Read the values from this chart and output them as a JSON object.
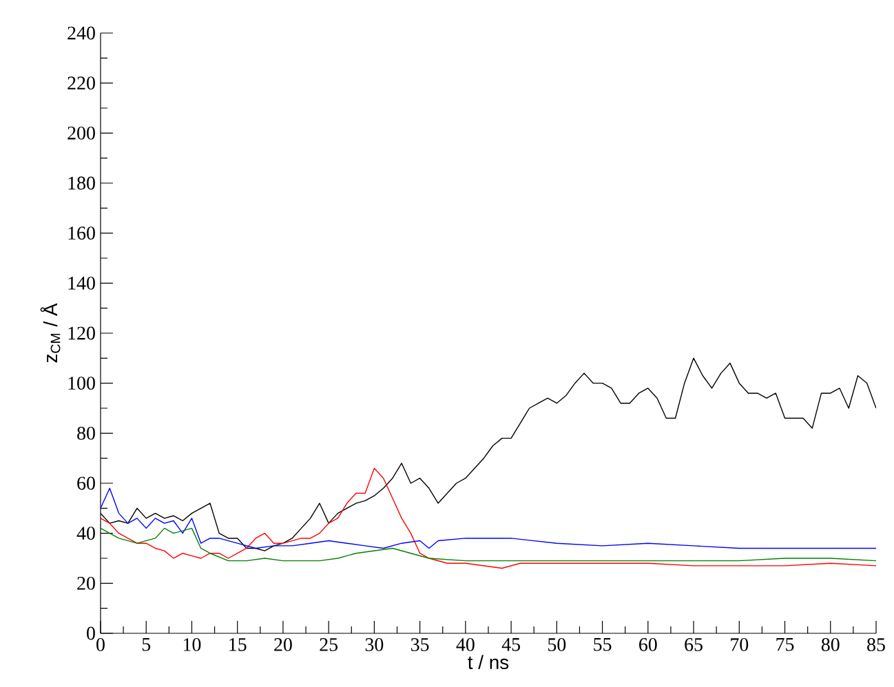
{
  "chart_data": {
    "type": "line",
    "xlabel": "t / ns",
    "ylabel": "z$_{CM}$ / Å",
    "xlim": [
      0,
      85
    ],
    "ylim": [
      0,
      240
    ],
    "xticks": [
      0,
      5,
      10,
      15,
      20,
      25,
      30,
      35,
      40,
      45,
      50,
      55,
      60,
      65,
      70,
      75,
      80,
      85
    ],
    "yticks": [
      0,
      20,
      40,
      60,
      80,
      100,
      120,
      140,
      160,
      180,
      200,
      220,
      240
    ],
    "grid": false,
    "marker": "none",
    "line_style": "solid",
    "series": [
      {
        "color": "#000000",
        "x": [
          0,
          1,
          2,
          3,
          4,
          5,
          6,
          7,
          8,
          9,
          10,
          11,
          12,
          13,
          14,
          15,
          16,
          17,
          18,
          19,
          20,
          21,
          22,
          23,
          24,
          25,
          26,
          27,
          28,
          29,
          30,
          31,
          32,
          33,
          34,
          35,
          36,
          37,
          38,
          39,
          40,
          41,
          42,
          43,
          44,
          45,
          46,
          47,
          48,
          49,
          50,
          51,
          52,
          53,
          54,
          55,
          56,
          57,
          58,
          59,
          60,
          61,
          62,
          63,
          64,
          65,
          66,
          67,
          68,
          69,
          70,
          71,
          72,
          73,
          74,
          75,
          76,
          77,
          78,
          79,
          80,
          81,
          82,
          83,
          84,
          85
        ],
        "values": [
          48,
          44,
          45,
          44,
          50,
          46,
          48,
          46,
          47,
          45,
          48,
          50,
          52,
          40,
          38,
          38,
          34,
          34,
          33,
          35,
          36,
          38,
          42,
          46,
          52,
          44,
          48,
          50,
          52,
          53,
          55,
          58,
          62,
          68,
          60,
          62,
          58,
          52,
          56,
          60,
          62,
          66,
          70,
          75,
          78,
          78,
          84,
          90,
          92,
          94,
          92,
          95,
          100,
          104,
          100,
          100,
          98,
          92,
          92,
          96,
          98,
          94,
          86,
          86,
          100,
          110,
          103,
          98,
          104,
          108,
          100,
          96,
          96,
          94,
          96,
          86,
          86,
          86,
          82,
          96,
          96,
          98,
          90,
          103,
          100,
          90
        ]
      },
      {
        "color": "#ff0000",
        "x": [
          0,
          1,
          2,
          3,
          4,
          5,
          6,
          7,
          8,
          9,
          10,
          11,
          12,
          13,
          14,
          15,
          16,
          17,
          18,
          19,
          20,
          21,
          22,
          23,
          24,
          25,
          26,
          27,
          28,
          29,
          30,
          31,
          32,
          33,
          34,
          35,
          36,
          38,
          40,
          42,
          44,
          46,
          48,
          50,
          55,
          60,
          65,
          70,
          75,
          80,
          85
        ],
        "values": [
          46,
          44,
          40,
          38,
          36,
          36,
          34,
          33,
          30,
          32,
          31,
          30,
          32,
          32,
          30,
          32,
          34,
          38,
          40,
          36,
          36,
          37,
          38,
          38,
          40,
          44,
          46,
          52,
          56,
          56,
          66,
          62,
          54,
          46,
          40,
          32,
          30,
          28,
          28,
          27,
          26,
          28,
          28,
          28,
          28,
          28,
          27,
          27,
          27,
          28,
          27
        ]
      },
      {
        "color": "#0000ff",
        "x": [
          0,
          1,
          2,
          3,
          4,
          5,
          6,
          7,
          8,
          9,
          10,
          11,
          12,
          13,
          15,
          17,
          19,
          21,
          23,
          25,
          27,
          29,
          31,
          33,
          35,
          36,
          37,
          40,
          45,
          50,
          55,
          60,
          65,
          70,
          75,
          80,
          85
        ],
        "values": [
          50,
          58,
          48,
          44,
          46,
          42,
          46,
          44,
          45,
          40,
          46,
          36,
          38,
          38,
          36,
          34,
          35,
          35,
          36,
          37,
          36,
          35,
          34,
          36,
          37,
          34,
          37,
          38,
          38,
          36,
          35,
          36,
          35,
          34,
          34,
          34,
          34
        ]
      },
      {
        "color": "#008000",
        "x": [
          0,
          2,
          4,
          6,
          7,
          8,
          10,
          11,
          12,
          14,
          16,
          18,
          20,
          22,
          24,
          26,
          28,
          30,
          32,
          34,
          36,
          40,
          45,
          50,
          55,
          60,
          65,
          70,
          75,
          80,
          85
        ],
        "values": [
          42,
          38,
          36,
          38,
          42,
          40,
          42,
          34,
          32,
          29,
          29,
          30,
          29,
          29,
          29,
          30,
          32,
          33,
          34,
          32,
          30,
          29,
          29,
          29,
          29,
          29,
          29,
          29,
          30,
          30,
          29
        ]
      }
    ]
  }
}
